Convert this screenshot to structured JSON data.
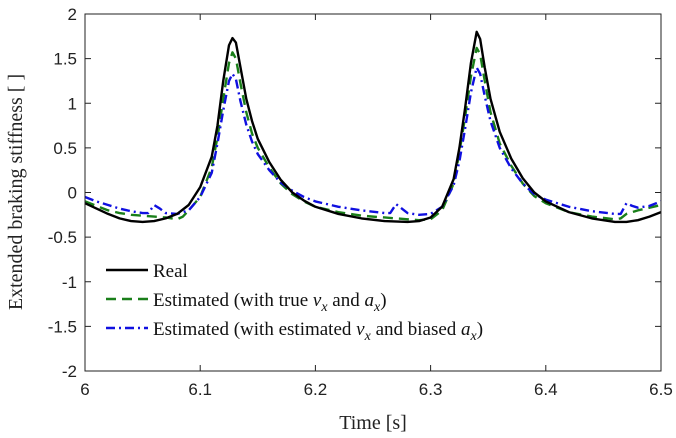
{
  "chart_data": {
    "type": "line",
    "xlabel": "Time [s]",
    "ylabel": "Extended braking stiffness [ ]",
    "xlim": [
      6,
      6.5
    ],
    "ylim": [
      -2,
      2
    ],
    "x_ticks": [
      "6",
      "6.1",
      "6.2",
      "6.3",
      "6.4",
      "6.5"
    ],
    "y_ticks": [
      "-2",
      "-1.5",
      "-1",
      "-0.5",
      "0",
      "0.5",
      "1",
      "1.5",
      "2"
    ],
    "grid": false,
    "legend_position": "bottom-left",
    "series": [
      {
        "name": "Real",
        "color": "#000000",
        "style": "solid",
        "points": [
          [
            6.0,
            -0.12
          ],
          [
            6.01,
            -0.18
          ],
          [
            6.02,
            -0.24
          ],
          [
            6.03,
            -0.29
          ],
          [
            6.04,
            -0.32
          ],
          [
            6.05,
            -0.33
          ],
          [
            6.06,
            -0.32
          ],
          [
            6.07,
            -0.29
          ],
          [
            6.08,
            -0.24
          ],
          [
            6.09,
            -0.14
          ],
          [
            6.1,
            0.06
          ],
          [
            6.11,
            0.4
          ],
          [
            6.115,
            0.75
          ],
          [
            6.12,
            1.25
          ],
          [
            6.125,
            1.65
          ],
          [
            6.128,
            1.73
          ],
          [
            6.131,
            1.68
          ],
          [
            6.135,
            1.4
          ],
          [
            6.14,
            1.05
          ],
          [
            6.145,
            0.8
          ],
          [
            6.15,
            0.6
          ],
          [
            6.16,
            0.34
          ],
          [
            6.17,
            0.14
          ],
          [
            6.18,
            0.0
          ],
          [
            6.19,
            -0.09
          ],
          [
            6.2,
            -0.16
          ],
          [
            6.22,
            -0.24
          ],
          [
            6.24,
            -0.29
          ],
          [
            6.26,
            -0.32
          ],
          [
            6.28,
            -0.33
          ],
          [
            6.29,
            -0.32
          ],
          [
            6.3,
            -0.28
          ],
          [
            6.31,
            -0.16
          ],
          [
            6.32,
            0.15
          ],
          [
            6.325,
            0.5
          ],
          [
            6.33,
            0.95
          ],
          [
            6.335,
            1.45
          ],
          [
            6.34,
            1.8
          ],
          [
            6.343,
            1.72
          ],
          [
            6.347,
            1.4
          ],
          [
            6.352,
            1.05
          ],
          [
            6.36,
            0.68
          ],
          [
            6.37,
            0.38
          ],
          [
            6.38,
            0.16
          ],
          [
            6.39,
            0.0
          ],
          [
            6.4,
            -0.1
          ],
          [
            6.42,
            -0.22
          ],
          [
            6.44,
            -0.29
          ],
          [
            6.46,
            -0.33
          ],
          [
            6.47,
            -0.33
          ],
          [
            6.48,
            -0.31
          ],
          [
            6.49,
            -0.27
          ],
          [
            6.5,
            -0.22
          ]
        ]
      },
      {
        "name": "Estimated (with true vx and ax)",
        "color": "#1a7f1a",
        "style": "dashed",
        "points": [
          [
            6.0,
            -0.1
          ],
          [
            6.01,
            -0.15
          ],
          [
            6.02,
            -0.2
          ],
          [
            6.03,
            -0.23
          ],
          [
            6.04,
            -0.25
          ],
          [
            6.05,
            -0.26
          ],
          [
            6.06,
            -0.27
          ],
          [
            6.07,
            -0.28
          ],
          [
            6.08,
            -0.3
          ],
          [
            6.085,
            -0.27
          ],
          [
            6.09,
            -0.2
          ],
          [
            6.1,
            -0.05
          ],
          [
            6.11,
            0.28
          ],
          [
            6.115,
            0.62
          ],
          [
            6.12,
            1.05
          ],
          [
            6.125,
            1.45
          ],
          [
            6.128,
            1.57
          ],
          [
            6.131,
            1.5
          ],
          [
            6.135,
            1.22
          ],
          [
            6.14,
            0.9
          ],
          [
            6.145,
            0.66
          ],
          [
            6.15,
            0.5
          ],
          [
            6.16,
            0.28
          ],
          [
            6.17,
            0.1
          ],
          [
            6.18,
            -0.02
          ],
          [
            6.19,
            -0.1
          ],
          [
            6.2,
            -0.16
          ],
          [
            6.22,
            -0.22
          ],
          [
            6.24,
            -0.26
          ],
          [
            6.26,
            -0.28
          ],
          [
            6.28,
            -0.3
          ],
          [
            6.29,
            -0.31
          ],
          [
            6.3,
            -0.3
          ],
          [
            6.31,
            -0.2
          ],
          [
            6.32,
            0.1
          ],
          [
            6.325,
            0.45
          ],
          [
            6.33,
            0.85
          ],
          [
            6.335,
            1.3
          ],
          [
            6.34,
            1.62
          ],
          [
            6.343,
            1.55
          ],
          [
            6.347,
            1.25
          ],
          [
            6.352,
            0.9
          ],
          [
            6.36,
            0.55
          ],
          [
            6.37,
            0.3
          ],
          [
            6.38,
            0.1
          ],
          [
            6.39,
            -0.04
          ],
          [
            6.4,
            -0.12
          ],
          [
            6.42,
            -0.22
          ],
          [
            6.44,
            -0.27
          ],
          [
            6.46,
            -0.3
          ],
          [
            6.465,
            -0.29
          ],
          [
            6.47,
            -0.24
          ],
          [
            6.48,
            -0.2
          ],
          [
            6.49,
            -0.17
          ],
          [
            6.5,
            -0.14
          ]
        ]
      },
      {
        "name": "Estimated (with estimated vx and biased ax)",
        "color": "#1010e0",
        "style": "dashdot",
        "points": [
          [
            6.0,
            -0.05
          ],
          [
            6.01,
            -0.1
          ],
          [
            6.02,
            -0.14
          ],
          [
            6.03,
            -0.18
          ],
          [
            6.04,
            -0.21
          ],
          [
            6.05,
            -0.23
          ],
          [
            6.055,
            -0.23
          ],
          [
            6.06,
            -0.14
          ],
          [
            6.065,
            -0.18
          ],
          [
            6.07,
            -0.23
          ],
          [
            6.08,
            -0.24
          ],
          [
            6.09,
            -0.2
          ],
          [
            6.1,
            -0.05
          ],
          [
            6.11,
            0.22
          ],
          [
            6.115,
            0.55
          ],
          [
            6.12,
            0.92
          ],
          [
            6.125,
            1.25
          ],
          [
            6.128,
            1.33
          ],
          [
            6.131,
            1.27
          ],
          [
            6.135,
            1.02
          ],
          [
            6.14,
            0.76
          ],
          [
            6.145,
            0.57
          ],
          [
            6.15,
            0.43
          ],
          [
            6.16,
            0.25
          ],
          [
            6.17,
            0.11
          ],
          [
            6.18,
            0.02
          ],
          [
            6.19,
            -0.05
          ],
          [
            6.2,
            -0.1
          ],
          [
            6.22,
            -0.16
          ],
          [
            6.24,
            -0.2
          ],
          [
            6.26,
            -0.23
          ],
          [
            6.265,
            -0.23
          ],
          [
            6.27,
            -0.13
          ],
          [
            6.275,
            -0.18
          ],
          [
            6.28,
            -0.23
          ],
          [
            6.29,
            -0.25
          ],
          [
            6.3,
            -0.24
          ],
          [
            6.31,
            -0.16
          ],
          [
            6.32,
            0.08
          ],
          [
            6.325,
            0.35
          ],
          [
            6.33,
            0.72
          ],
          [
            6.335,
            1.12
          ],
          [
            6.34,
            1.4
          ],
          [
            6.343,
            1.33
          ],
          [
            6.347,
            1.08
          ],
          [
            6.352,
            0.8
          ],
          [
            6.36,
            0.5
          ],
          [
            6.37,
            0.27
          ],
          [
            6.38,
            0.1
          ],
          [
            6.39,
            -0.02
          ],
          [
            6.4,
            -0.08
          ],
          [
            6.42,
            -0.16
          ],
          [
            6.44,
            -0.21
          ],
          [
            6.46,
            -0.24
          ],
          [
            6.465,
            -0.24
          ],
          [
            6.47,
            -0.12
          ],
          [
            6.475,
            -0.15
          ],
          [
            6.48,
            -0.17
          ],
          [
            6.49,
            -0.15
          ],
          [
            6.5,
            -0.1
          ]
        ]
      }
    ],
    "legend_entries": [
      {
        "series_index": 0,
        "parts": [
          {
            "t": "Real"
          }
        ]
      },
      {
        "series_index": 1,
        "parts": [
          {
            "t": "Estimated (with true "
          },
          {
            "t": "v",
            "math": true
          },
          {
            "t": "x",
            "sub": true
          },
          {
            "t": " and "
          },
          {
            "t": "a",
            "math": true
          },
          {
            "t": "x",
            "sub": true
          },
          {
            "t": ")"
          }
        ]
      },
      {
        "series_index": 2,
        "parts": [
          {
            "t": "Estimated (with estimated "
          },
          {
            "t": "v",
            "math": true
          },
          {
            "t": "x",
            "sub": true
          },
          {
            "t": " and biased "
          },
          {
            "t": "a",
            "math": true
          },
          {
            "t": "x",
            "sub": true
          },
          {
            "t": ")"
          }
        ]
      }
    ]
  }
}
